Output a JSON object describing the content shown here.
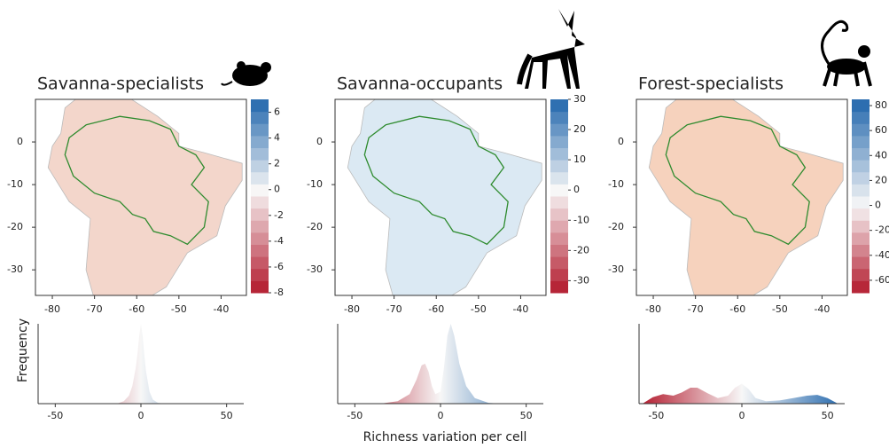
{
  "panels": [
    {
      "title": "Savanna-specialists",
      "map": {
        "xlim": [
          -84,
          -34
        ],
        "ylim": [
          -36,
          10
        ],
        "xticks": [
          -80,
          -70,
          -60,
          -50,
          -40
        ],
        "yticks": [
          0,
          -10,
          -20,
          -30
        ]
      },
      "colorbar": {
        "lim": [
          -8,
          7
        ],
        "ticks": [
          6,
          4,
          2,
          0,
          -2,
          -4,
          -6,
          -8
        ]
      },
      "density": {
        "type": "area",
        "xlim": [
          -60,
          60
        ],
        "xticks": [
          -50,
          0,
          50
        ],
        "x": [
          -14,
          -10,
          -7,
          -5,
          -3,
          -2,
          -1,
          0,
          1,
          2,
          3,
          5,
          7,
          10,
          14
        ],
        "values": [
          0,
          0.03,
          0.1,
          0.22,
          0.45,
          0.62,
          0.85,
          1.0,
          0.85,
          0.6,
          0.4,
          0.15,
          0.05,
          0.01,
          0
        ]
      }
    },
    {
      "title": "Savanna-occupants",
      "map": {
        "xlim": [
          -84,
          -34
        ],
        "ylim": [
          -36,
          10
        ],
        "xticks": [
          -80,
          -70,
          -60,
          -50,
          -40
        ],
        "yticks": [
          0,
          -10,
          -20,
          -30
        ]
      },
      "colorbar": {
        "lim": [
          -34,
          30
        ],
        "ticks": [
          30,
          20,
          10,
          0,
          -10,
          -20,
          -30
        ]
      },
      "density": {
        "type": "area",
        "xlim": [
          -60,
          60
        ],
        "xticks": [
          -50,
          0,
          50
        ],
        "x": [
          -35,
          -25,
          -18,
          -14,
          -11,
          -9,
          -7,
          -5,
          -3,
          0,
          2,
          4,
          6,
          8,
          11,
          15,
          20,
          28,
          35
        ],
        "values": [
          0,
          0.03,
          0.12,
          0.3,
          0.48,
          0.5,
          0.4,
          0.22,
          0.12,
          0.15,
          0.45,
          0.85,
          1.0,
          0.85,
          0.5,
          0.22,
          0.07,
          0.01,
          0
        ]
      }
    },
    {
      "title": "Forest-specialists",
      "map": {
        "xlim": [
          -84,
          -34
        ],
        "ylim": [
          -36,
          10
        ],
        "xticks": [
          -80,
          -70,
          -60,
          -50,
          -40
        ],
        "yticks": [
          0,
          -10,
          -20,
          -30
        ]
      },
      "colorbar": {
        "lim": [
          -70,
          85
        ],
        "ticks": [
          80,
          60,
          40,
          20,
          0,
          -20,
          -40,
          -60
        ]
      },
      "density": {
        "type": "area",
        "xlim": [
          -60,
          60
        ],
        "xticks": [
          -50,
          0,
          50
        ],
        "x": [
          -58,
          -52,
          -46,
          -40,
          -35,
          -30,
          -26,
          -20,
          -14,
          -8,
          -4,
          0,
          4,
          8,
          14,
          22,
          30,
          38,
          44,
          50,
          56
        ],
        "values": [
          0,
          0.08,
          0.12,
          0.1,
          0.14,
          0.2,
          0.2,
          0.13,
          0.07,
          0.1,
          0.2,
          0.25,
          0.18,
          0.07,
          0.03,
          0.04,
          0.07,
          0.1,
          0.11,
          0.07,
          0
        ]
      }
    }
  ],
  "ylabel": "Frequency",
  "xlabel": "Richness variation per cell"
}
